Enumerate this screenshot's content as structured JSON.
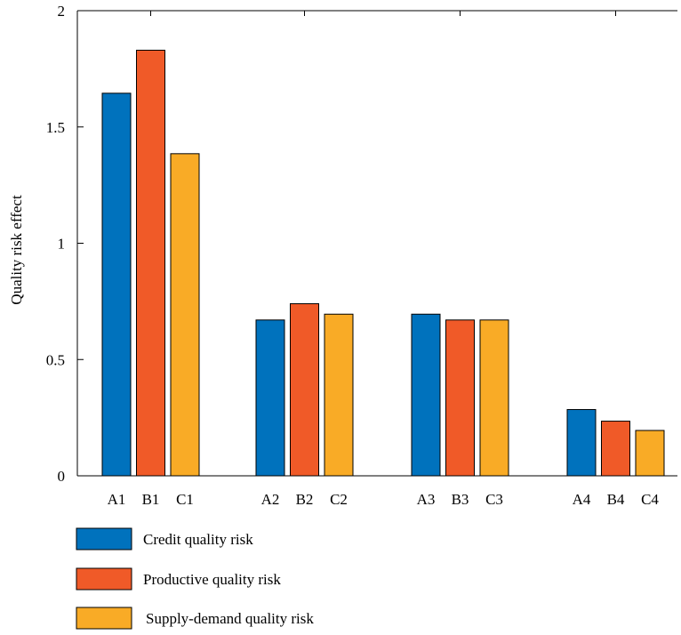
{
  "chart_data": {
    "type": "bar",
    "title": "",
    "xlabel": "",
    "ylabel": "Quality risk effect",
    "ylim": [
      0,
      2
    ],
    "yticks": [
      "0",
      "0.5",
      "1",
      "1.5",
      "2"
    ],
    "grid": false,
    "legend_placement": "bottom-left",
    "groups": [
      {
        "categories": [
          "A1",
          "B1",
          "C1"
        ],
        "values": [
          1.645,
          1.83,
          1.385
        ]
      },
      {
        "categories": [
          "A2",
          "B2",
          "C2"
        ],
        "values": [
          0.67,
          0.74,
          0.695
        ]
      },
      {
        "categories": [
          "A3",
          "B3",
          "C3"
        ],
        "values": [
          0.695,
          0.67,
          0.67
        ]
      },
      {
        "categories": [
          "A4",
          "B4",
          "C4"
        ],
        "values": [
          0.285,
          0.235,
          0.195
        ]
      }
    ],
    "series": [
      {
        "name": "Credit quality risk",
        "color": "#0072bd"
      },
      {
        "name": "Productive quality risk",
        "color": "#f05a28"
      },
      {
        "name": "Supply-demand quality risk",
        "color": "#f9ab26"
      }
    ]
  }
}
